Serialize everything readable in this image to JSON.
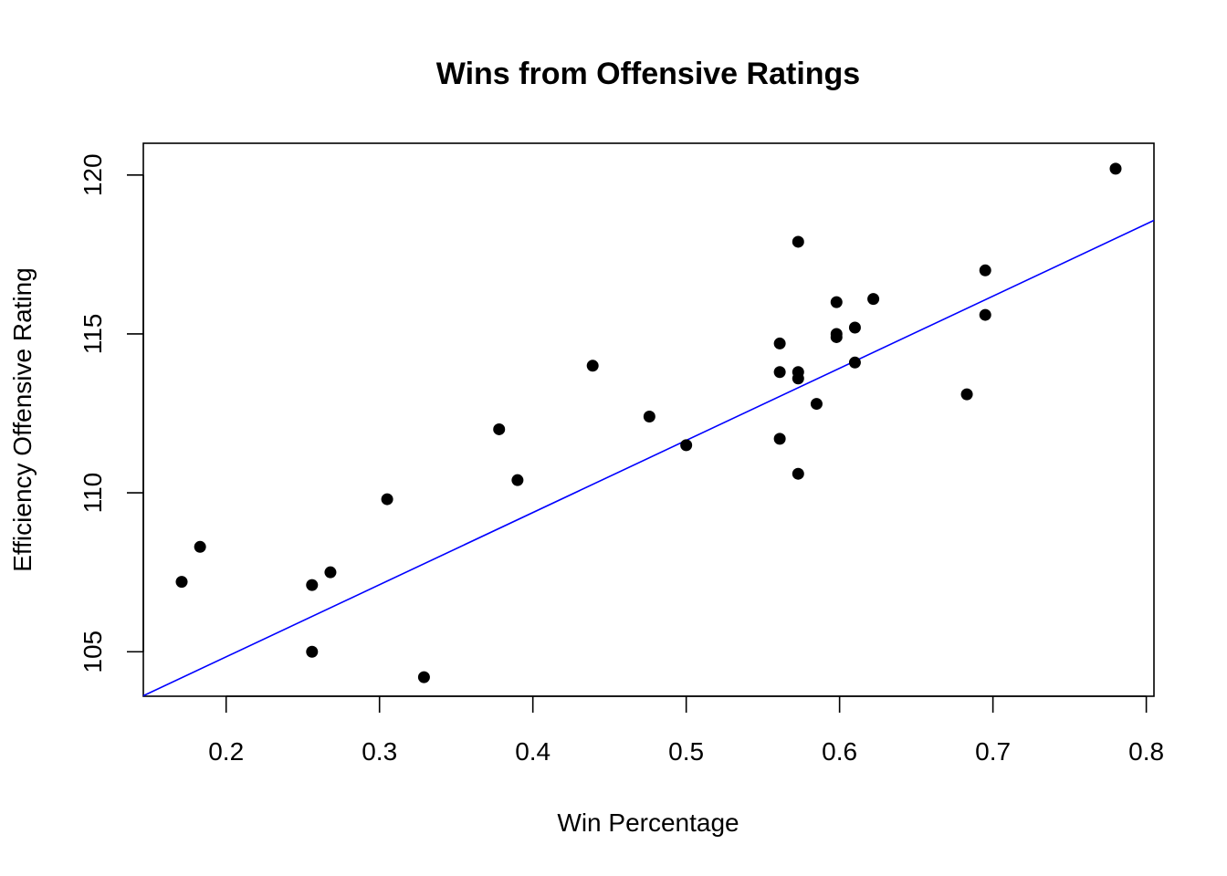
{
  "chart_data": {
    "type": "scatter",
    "title": "Wins from Offensive Ratings",
    "xlabel": "Win Percentage",
    "ylabel": "Efficiency Offensive Rating",
    "xlim": [
      0.146,
      0.805
    ],
    "ylim": [
      103.6,
      121.0
    ],
    "x_ticks": [
      0.2,
      0.3,
      0.4,
      0.5,
      0.6,
      0.7,
      0.8
    ],
    "x_tick_labels": [
      "0.2",
      "0.3",
      "0.4",
      "0.5",
      "0.6",
      "0.7",
      "0.8"
    ],
    "y_ticks": [
      105,
      110,
      115,
      120
    ],
    "y_tick_labels": [
      "105",
      "110",
      "115",
      "120"
    ],
    "grid": false,
    "point_color": "#000000",
    "line_color": "#0000ff",
    "points": [
      {
        "x": 0.171,
        "y": 107.2
      },
      {
        "x": 0.183,
        "y": 108.3
      },
      {
        "x": 0.256,
        "y": 107.1
      },
      {
        "x": 0.256,
        "y": 105.0
      },
      {
        "x": 0.268,
        "y": 107.5
      },
      {
        "x": 0.305,
        "y": 109.8
      },
      {
        "x": 0.329,
        "y": 104.2
      },
      {
        "x": 0.378,
        "y": 112.0
      },
      {
        "x": 0.39,
        "y": 110.4
      },
      {
        "x": 0.439,
        "y": 114.0
      },
      {
        "x": 0.476,
        "y": 112.4
      },
      {
        "x": 0.5,
        "y": 111.5
      },
      {
        "x": 0.561,
        "y": 114.7
      },
      {
        "x": 0.561,
        "y": 113.8
      },
      {
        "x": 0.561,
        "y": 111.7
      },
      {
        "x": 0.573,
        "y": 117.9
      },
      {
        "x": 0.573,
        "y": 113.8
      },
      {
        "x": 0.573,
        "y": 113.6
      },
      {
        "x": 0.573,
        "y": 110.6
      },
      {
        "x": 0.585,
        "y": 112.8
      },
      {
        "x": 0.598,
        "y": 116.0
      },
      {
        "x": 0.598,
        "y": 115.0
      },
      {
        "x": 0.598,
        "y": 114.9
      },
      {
        "x": 0.61,
        "y": 115.2
      },
      {
        "x": 0.61,
        "y": 114.1
      },
      {
        "x": 0.622,
        "y": 116.1
      },
      {
        "x": 0.683,
        "y": 113.1
      },
      {
        "x": 0.695,
        "y": 117.0
      },
      {
        "x": 0.695,
        "y": 115.6
      },
      {
        "x": 0.78,
        "y": 120.2
      }
    ],
    "fit_line": {
      "intercept": 100.3,
      "slope": 22.7
    }
  }
}
